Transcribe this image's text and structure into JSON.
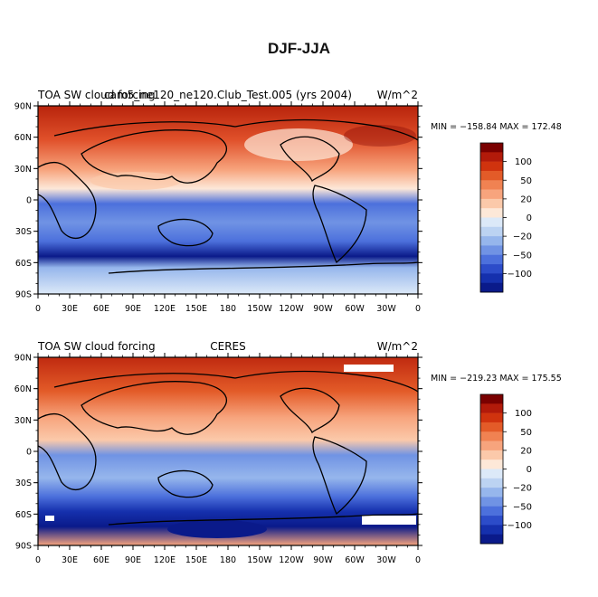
{
  "main_title": "DJF-JJA",
  "lat_ticks": [
    "90N",
    "60N",
    "30N",
    "0",
    "30S",
    "60S",
    "90S"
  ],
  "lon_ticks": [
    "0",
    "30E",
    "60E",
    "90E",
    "120E",
    "150E",
    "180",
    "150W",
    "120W",
    "90W",
    "60W",
    "30W",
    "0"
  ],
  "colorbar": {
    "labels": [
      "100",
      "50",
      "20",
      "0",
      "−20",
      "−50",
      "−100"
    ],
    "colors": [
      "#7a0000",
      "#b21a0a",
      "#d0330e",
      "#e35b28",
      "#f08252",
      "#f7a47d",
      "#fbc9aa",
      "#fde8d8",
      "#dce9f8",
      "#bcd3f2",
      "#96b6ec",
      "#7093e4",
      "#4c70dc",
      "#2c4cc9",
      "#1530ad",
      "#0a1a8a"
    ]
  },
  "panels": [
    {
      "left_title": "TOA SW cloud forcing",
      "center_title": "cam5_ne120_ne120.Club_Test.005 (yrs 2004)",
      "right_title": "W/m^2",
      "stats": "MIN = −158.84  MAX = 172.48"
    },
    {
      "left_title": "TOA SW cloud forcing",
      "center_title": "CERES",
      "right_title": "W/m^2",
      "stats": "MIN = −219.23  MAX = 175.55"
    }
  ]
}
